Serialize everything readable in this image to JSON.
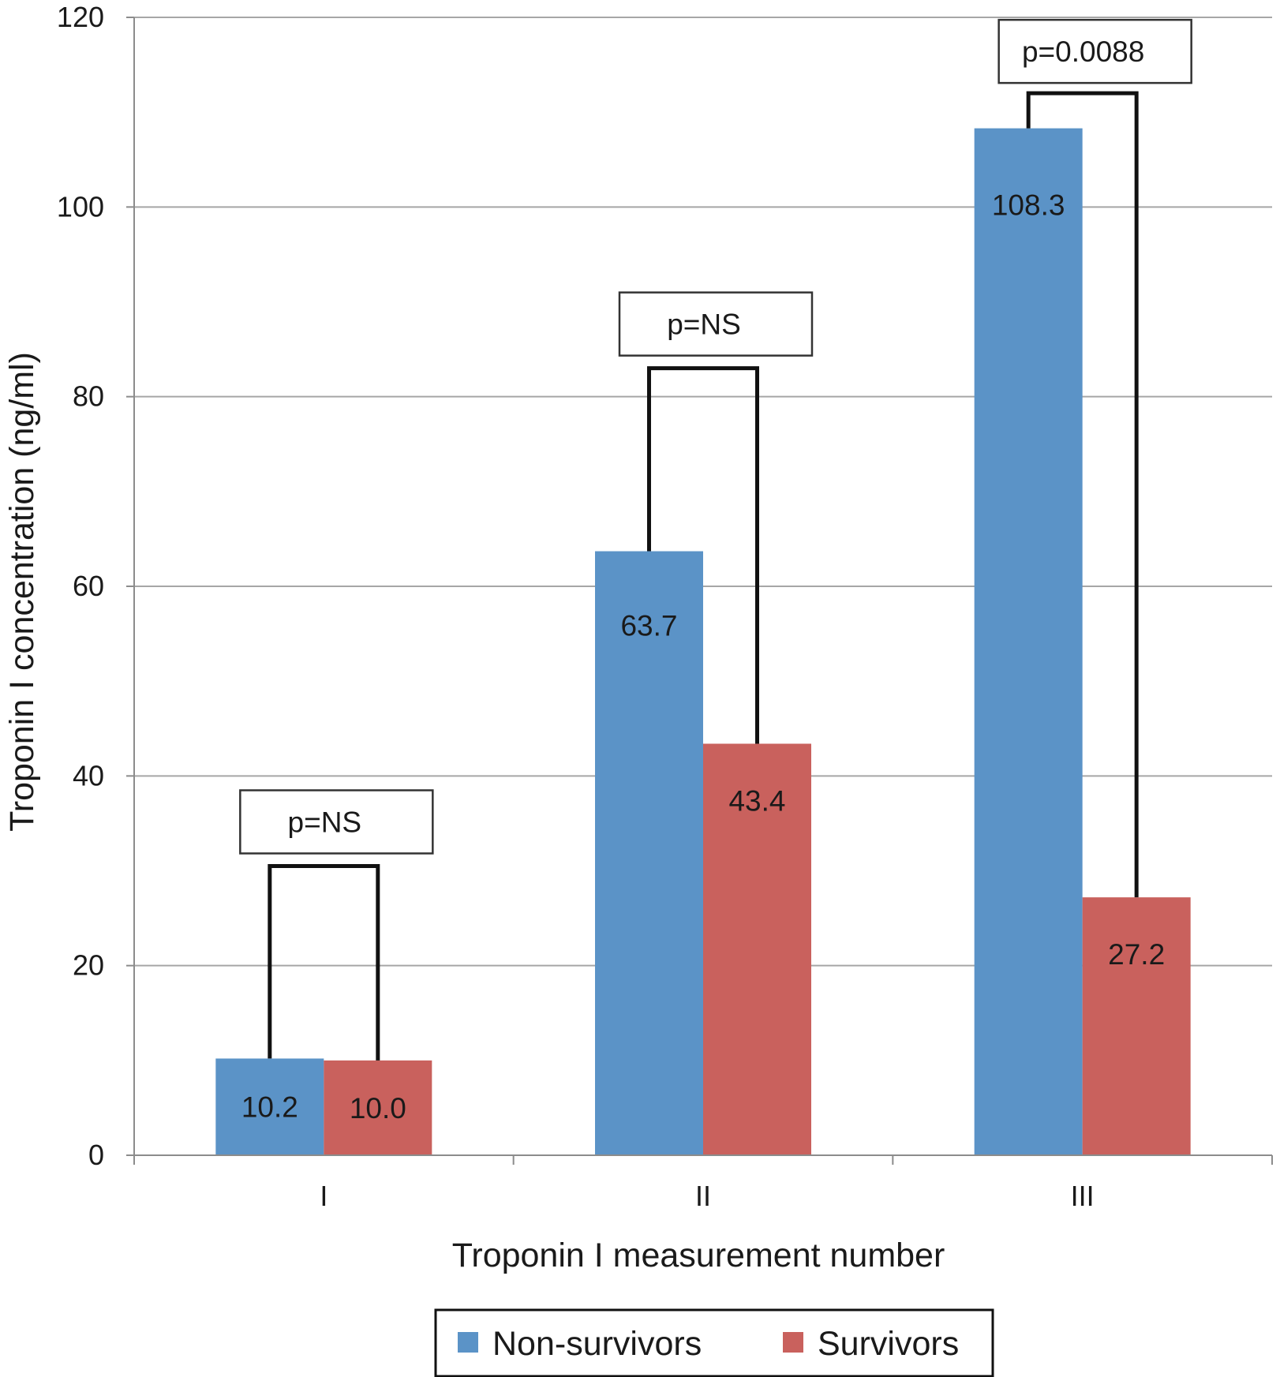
{
  "chart_data": {
    "type": "bar",
    "categories": [
      "I",
      "II",
      "III"
    ],
    "series": [
      {
        "name": "Non-survivors",
        "color": "#5b93c7",
        "values": [
          10.2,
          63.7,
          108.3
        ],
        "labels": [
          "10.2",
          "63.7",
          "108.3"
        ]
      },
      {
        "name": "Survivors",
        "color": "#c9615d",
        "values": [
          10.0,
          43.4,
          27.2
        ],
        "labels": [
          "10.0",
          "43.4",
          "27.2"
        ]
      }
    ],
    "xlabel": "Troponin I measurement number",
    "ylabel": "Troponin I concentration (ng/ml)",
    "ylim": [
      0,
      120
    ],
    "yticks": [
      0,
      20,
      40,
      60,
      80,
      100,
      120
    ],
    "grid": true,
    "legend_position": "bottom",
    "annotations": [
      {
        "category": "I",
        "text": "p=NS",
        "bracket_level": 30.5
      },
      {
        "category": "II",
        "text": "p=NS",
        "bracket_level": 83
      },
      {
        "category": "III",
        "text": "p=0.0088",
        "bracket_level": 112
      }
    ]
  }
}
